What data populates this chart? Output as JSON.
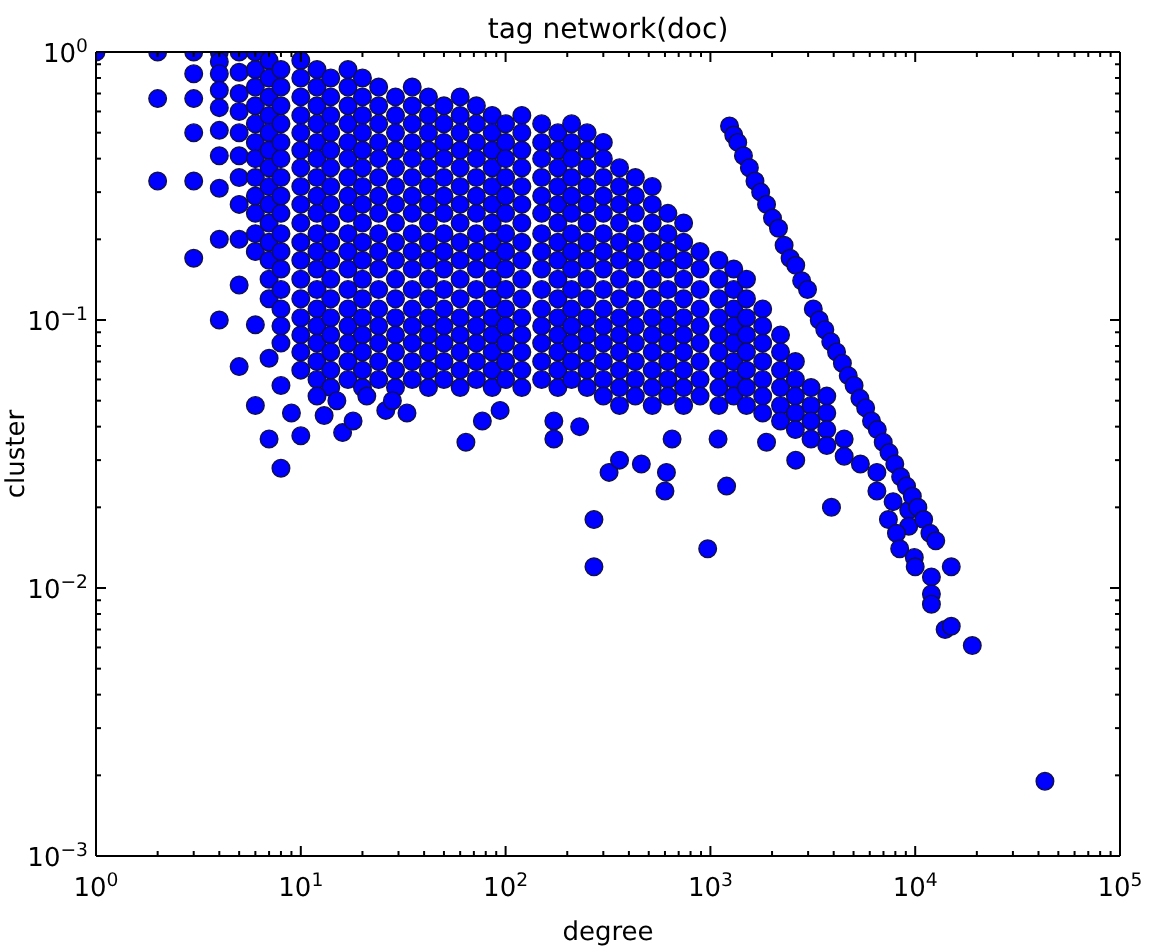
{
  "chart_data": {
    "type": "scatter",
    "title": "tag network(doc)",
    "xlabel": "degree",
    "ylabel": "cluster",
    "color": "#0000ff",
    "marker": "circle",
    "log": "xy",
    "xlim": [
      1,
      100000
    ],
    "ylim": [
      0.001,
      1
    ],
    "xticks": [
      {
        "value": 1,
        "label": "10$^{0}$"
      },
      {
        "value": 2,
        "label": null
      },
      {
        "value": 3,
        "label": null
      },
      {
        "value": 4,
        "label": null
      },
      {
        "value": 5,
        "label": null
      },
      {
        "value": 6,
        "label": null
      },
      {
        "value": 7,
        "label": null
      },
      {
        "value": 8,
        "label": null
      },
      {
        "value": 9,
        "label": null
      },
      {
        "value": 10,
        "label": "10$^{1}$"
      },
      {
        "value": 20,
        "label": null
      },
      {
        "value": 30,
        "label": null
      },
      {
        "value": 40,
        "label": null
      },
      {
        "value": 50,
        "label": null
      },
      {
        "value": 60,
        "label": null
      },
      {
        "value": 70,
        "label": null
      },
      {
        "value": 80,
        "label": null
      },
      {
        "value": 90,
        "label": null
      },
      {
        "value": 100,
        "label": "10$^{2}$"
      },
      {
        "value": 200,
        "label": null
      },
      {
        "value": 300,
        "label": null
      },
      {
        "value": 400,
        "label": null
      },
      {
        "value": 500,
        "label": null
      },
      {
        "value": 600,
        "label": null
      },
      {
        "value": 700,
        "label": null
      },
      {
        "value": 800,
        "label": null
      },
      {
        "value": 900,
        "label": null
      },
      {
        "value": 1000,
        "label": "10$^{3}$"
      },
      {
        "value": 2000,
        "label": null
      },
      {
        "value": 3000,
        "label": null
      },
      {
        "value": 4000,
        "label": null
      },
      {
        "value": 5000,
        "label": null
      },
      {
        "value": 6000,
        "label": null
      },
      {
        "value": 7000,
        "label": null
      },
      {
        "value": 8000,
        "label": null
      },
      {
        "value": 9000,
        "label": null
      },
      {
        "value": 10000,
        "label": "10$^{4}$"
      },
      {
        "value": 20000,
        "label": null
      },
      {
        "value": 30000,
        "label": null
      },
      {
        "value": 40000,
        "label": null
      },
      {
        "value": 50000,
        "label": null
      },
      {
        "value": 60000,
        "label": null
      },
      {
        "value": 70000,
        "label": null
      },
      {
        "value": 80000,
        "label": null
      },
      {
        "value": 90000,
        "label": null
      },
      {
        "value": 100000,
        "label": "10$^{5}$"
      }
    ],
    "yticks": [
      {
        "value": 0.001,
        "label": "10$^{−3}$"
      },
      {
        "value": 0.002,
        "label": null
      },
      {
        "value": 0.003,
        "label": null
      },
      {
        "value": 0.004,
        "label": null
      },
      {
        "value": 0.005,
        "label": null
      },
      {
        "value": 0.006,
        "label": null
      },
      {
        "value": 0.007,
        "label": null
      },
      {
        "value": 0.008,
        "label": null
      },
      {
        "value": 0.009,
        "label": null
      },
      {
        "value": 0.01,
        "label": "10$^{−2}$"
      },
      {
        "value": 0.02,
        "label": null
      },
      {
        "value": 0.03,
        "label": null
      },
      {
        "value": 0.04,
        "label": null
      },
      {
        "value": 0.05,
        "label": null
      },
      {
        "value": 0.06,
        "label": null
      },
      {
        "value": 0.07,
        "label": null
      },
      {
        "value": 0.08,
        "label": null
      },
      {
        "value": 0.09,
        "label": null
      },
      {
        "value": 0.1,
        "label": "10$^{−1}$"
      },
      {
        "value": 0.2,
        "label": null
      },
      {
        "value": 0.3,
        "label": null
      },
      {
        "value": 0.4,
        "label": null
      },
      {
        "value": 0.5,
        "label": null
      },
      {
        "value": 0.6,
        "label": null
      },
      {
        "value": 0.7,
        "label": null
      },
      {
        "value": 0.8,
        "label": null
      },
      {
        "value": 0.9,
        "label": null
      },
      {
        "value": 1,
        "label": "10$^{0}$"
      }
    ],
    "x": [
      1,
      2,
      2,
      2,
      3,
      3,
      3,
      3,
      3,
      3,
      4,
      4,
      4,
      4,
      4,
      4,
      4,
      4,
      4,
      4,
      5,
      5,
      5,
      5,
      5,
      5,
      5,
      5,
      5,
      5,
      5,
      6,
      6,
      6,
      6,
      6,
      6,
      6,
      6,
      6,
      6,
      6,
      6,
      7,
      7,
      7,
      7,
      7,
      7,
      7,
      7,
      7,
      7,
      7,
      7,
      7,
      7,
      8,
      8,
      8,
      8,
      8,
      8,
      8,
      8,
      8,
      8,
      8,
      8,
      8,
      8,
      8,
      8,
      10,
      10,
      10,
      10,
      10,
      10,
      10,
      10,
      10,
      10,
      10,
      10,
      10,
      10,
      10,
      10,
      10,
      10,
      12,
      12,
      12,
      12,
      12,
      12,
      12,
      12,
      12,
      12,
      12,
      12,
      12,
      12,
      12,
      12,
      12,
      12,
      14,
      14,
      14,
      14,
      14,
      14,
      14,
      14,
      14,
      14,
      14,
      14,
      14,
      14,
      14,
      14,
      14,
      14,
      17,
      17,
      17,
      17,
      17,
      17,
      17,
      17,
      17,
      17,
      17,
      17,
      17,
      17,
      17,
      17,
      17,
      17,
      20,
      20,
      20,
      20,
      20,
      20,
      20,
      20,
      20,
      20,
      20,
      20,
      20,
      20,
      20,
      20,
      20,
      20,
      24,
      24,
      24,
      24,
      24,
      24,
      24,
      24,
      24,
      24,
      24,
      24,
      24,
      24,
      24,
      24,
      24,
      29,
      29,
      29,
      29,
      29,
      29,
      29,
      29,
      29,
      29,
      29,
      29,
      29,
      29,
      29,
      29,
      29,
      35,
      35,
      35,
      35,
      35,
      35,
      35,
      35,
      35,
      35,
      35,
      35,
      35,
      35,
      35,
      35,
      35,
      42,
      42,
      42,
      42,
      42,
      42,
      42,
      42,
      42,
      42,
      42,
      42,
      42,
      42,
      42,
      42,
      42,
      50,
      50,
      50,
      50,
      50,
      50,
      50,
      50,
      50,
      50,
      50,
      50,
      50,
      50,
      50,
      50,
      60,
      60,
      60,
      60,
      60,
      60,
      60,
      60,
      60,
      60,
      60,
      60,
      60,
      60,
      60,
      60,
      60,
      72,
      72,
      72,
      72,
      72,
      72,
      72,
      72,
      72,
      72,
      72,
      72,
      72,
      72,
      72,
      72,
      86,
      86,
      86,
      86,
      86,
      86,
      86,
      86,
      86,
      86,
      86,
      86,
      86,
      86,
      86,
      86,
      100,
      100,
      100,
      100,
      100,
      100,
      100,
      100,
      100,
      100,
      100,
      100,
      100,
      100,
      100,
      120,
      120,
      120,
      120,
      120,
      120,
      120,
      120,
      120,
      120,
      120,
      120,
      120,
      120,
      120,
      120,
      150,
      150,
      150,
      150,
      150,
      150,
      150,
      150,
      150,
      150,
      150,
      150,
      150,
      150,
      150,
      180,
      180,
      180,
      180,
      180,
      180,
      180,
      180,
      180,
      180,
      180,
      180,
      180,
      180,
      180,
      210,
      210,
      210,
      210,
      210,
      210,
      210,
      210,
      210,
      210,
      210,
      210,
      210,
      210,
      210,
      250,
      250,
      250,
      250,
      250,
      250,
      250,
      250,
      250,
      250,
      250,
      250,
      250,
      250,
      250,
      300,
      300,
      300,
      300,
      300,
      300,
      300,
      300,
      300,
      300,
      300,
      300,
      300,
      300,
      300,
      360,
      360,
      360,
      360,
      360,
      360,
      360,
      360,
      360,
      360,
      360,
      360,
      360,
      360,
      430,
      430,
      430,
      430,
      430,
      430,
      430,
      430,
      430,
      430,
      430,
      430,
      430,
      520,
      520,
      520,
      520,
      520,
      520,
      520,
      520,
      520,
      520,
      520,
      520,
      520,
      620,
      620,
      620,
      620,
      620,
      620,
      620,
      620,
      620,
      620,
      620,
      740,
      740,
      740,
      740,
      740,
      740,
      740,
      740,
      740,
      740,
      740,
      890,
      890,
      890,
      890,
      890,
      890,
      890,
      890,
      890,
      1100,
      1100,
      1100,
      1100,
      1100,
      1100,
      1100,
      1100,
      1100,
      1300,
      1300,
      1300,
      1300,
      1300,
      1300,
      1300,
      1300,
      1500,
      1500,
      1500,
      1500,
      1500,
      1500,
      1500,
      1500,
      1800,
      1800,
      1800,
      1800,
      1800,
      1800,
      1800,
      2200,
      2200,
      2200,
      2200,
      2200,
      2200,
      2600,
      2600,
      2600,
      2600,
      2600,
      3100,
      3100,
      3100,
      3100,
      3700,
      3700,
      3700,
      3700,
      4500,
      4500,
      5400,
      6500,
      6500,
      7800,
      9300,
      9300,
      6,
      6,
      7,
      7,
      8,
      8,
      9,
      10,
      12,
      13,
      15,
      16,
      18,
      21,
      26,
      28,
      33,
      64,
      77,
      94,
      172,
      172,
      230,
      270,
      270,
      320,
      360,
      460,
      600,
      610,
      650,
      970,
      1090,
      1200,
      1880,
      2610,
      3900,
      1240,
      1300,
      1360,
      1450,
      1550,
      1650,
      1760,
      1880,
      2010,
      2150,
      2290,
      2450,
      2610,
      2790,
      2980,
      3180,
      3400,
      3620,
      3870,
      4130,
      4410,
      4710,
      5030,
      5370,
      5730,
      6120,
      6530,
      6980,
      7450,
      7950,
      8490,
      9070,
      9680,
      10300,
      11000,
      11800,
      12600,
      7400,
      8100,
      8400,
      9900,
      10000,
      12000,
      15000,
      12000,
      12000,
      14000,
      15000,
      19000,
      43000
    ],
    "values": [
      1,
      1,
      0.67,
      0.33,
      1,
      0.83,
      0.67,
      0.5,
      0.33,
      0.17,
      1,
      0.92,
      0.83,
      0.72,
      0.62,
      0.51,
      0.41,
      0.31,
      0.2,
      0.1,
      1,
      0.84,
      0.7,
      0.6,
      0.5,
      0.41,
      0.34,
      0.27,
      0.2,
      0.135,
      0.067,
      1,
      0.86,
      0.74,
      0.63,
      0.54,
      0.46,
      0.4,
      0.34,
      0.29,
      0.25,
      0.21,
      0.18,
      0.93,
      0.8,
      0.68,
      0.58,
      0.5,
      0.43,
      0.37,
      0.315,
      0.27,
      0.23,
      0.195,
      0.167,
      0.142,
      0.12,
      0.86,
      0.74,
      0.63,
      0.54,
      0.46,
      0.4,
      0.34,
      0.29,
      0.25,
      0.21,
      0.18,
      0.155,
      0.13,
      0.11,
      0.095,
      0.082,
      0.93,
      0.8,
      0.68,
      0.58,
      0.5,
      0.43,
      0.37,
      0.315,
      0.27,
      0.23,
      0.195,
      0.167,
      0.142,
      0.12,
      0.102,
      0.088,
      0.076,
      0.065,
      0.86,
      0.74,
      0.63,
      0.54,
      0.46,
      0.4,
      0.34,
      0.29,
      0.25,
      0.21,
      0.18,
      0.155,
      0.13,
      0.11,
      0.095,
      0.082,
      0.07,
      0.06,
      0.8,
      0.68,
      0.58,
      0.5,
      0.43,
      0.37,
      0.315,
      0.27,
      0.23,
      0.195,
      0.167,
      0.142,
      0.12,
      0.102,
      0.088,
      0.076,
      0.065,
      0.056,
      0.86,
      0.74,
      0.63,
      0.54,
      0.46,
      0.4,
      0.34,
      0.29,
      0.25,
      0.21,
      0.18,
      0.155,
      0.13,
      0.11,
      0.095,
      0.082,
      0.07,
      0.06,
      0.8,
      0.68,
      0.58,
      0.5,
      0.43,
      0.37,
      0.315,
      0.27,
      0.23,
      0.195,
      0.167,
      0.142,
      0.12,
      0.102,
      0.088,
      0.076,
      0.065,
      0.056,
      0.74,
      0.63,
      0.54,
      0.46,
      0.4,
      0.34,
      0.29,
      0.25,
      0.21,
      0.18,
      0.155,
      0.13,
      0.11,
      0.095,
      0.082,
      0.07,
      0.06,
      0.68,
      0.58,
      0.5,
      0.43,
      0.37,
      0.315,
      0.27,
      0.23,
      0.195,
      0.167,
      0.142,
      0.12,
      0.102,
      0.088,
      0.076,
      0.065,
      0.056,
      0.74,
      0.63,
      0.54,
      0.46,
      0.4,
      0.34,
      0.29,
      0.25,
      0.21,
      0.18,
      0.155,
      0.13,
      0.11,
      0.095,
      0.082,
      0.07,
      0.06,
      0.68,
      0.58,
      0.5,
      0.43,
      0.37,
      0.315,
      0.27,
      0.23,
      0.195,
      0.167,
      0.142,
      0.12,
      0.102,
      0.088,
      0.076,
      0.065,
      0.056,
      0.63,
      0.54,
      0.46,
      0.4,
      0.34,
      0.29,
      0.25,
      0.21,
      0.18,
      0.155,
      0.13,
      0.11,
      0.095,
      0.082,
      0.07,
      0.06,
      0.68,
      0.58,
      0.5,
      0.43,
      0.37,
      0.315,
      0.27,
      0.23,
      0.195,
      0.167,
      0.142,
      0.12,
      0.102,
      0.088,
      0.076,
      0.065,
      0.056,
      0.63,
      0.54,
      0.46,
      0.4,
      0.34,
      0.29,
      0.25,
      0.21,
      0.18,
      0.155,
      0.13,
      0.11,
      0.095,
      0.082,
      0.07,
      0.06,
      0.58,
      0.5,
      0.43,
      0.37,
      0.315,
      0.27,
      0.23,
      0.195,
      0.167,
      0.142,
      0.12,
      0.102,
      0.088,
      0.076,
      0.065,
      0.056,
      0.54,
      0.46,
      0.4,
      0.34,
      0.29,
      0.25,
      0.21,
      0.18,
      0.155,
      0.13,
      0.11,
      0.095,
      0.082,
      0.07,
      0.06,
      0.58,
      0.5,
      0.43,
      0.37,
      0.315,
      0.27,
      0.23,
      0.195,
      0.167,
      0.142,
      0.12,
      0.102,
      0.088,
      0.076,
      0.065,
      0.056,
      0.54,
      0.46,
      0.4,
      0.34,
      0.29,
      0.25,
      0.21,
      0.18,
      0.155,
      0.13,
      0.11,
      0.095,
      0.082,
      0.07,
      0.06,
      0.5,
      0.43,
      0.37,
      0.315,
      0.27,
      0.23,
      0.195,
      0.167,
      0.142,
      0.12,
      0.102,
      0.088,
      0.076,
      0.065,
      0.056,
      0.54,
      0.46,
      0.4,
      0.34,
      0.29,
      0.25,
      0.21,
      0.18,
      0.155,
      0.13,
      0.11,
      0.095,
      0.082,
      0.07,
      0.06,
      0.5,
      0.43,
      0.37,
      0.315,
      0.27,
      0.23,
      0.195,
      0.167,
      0.142,
      0.12,
      0.102,
      0.088,
      0.076,
      0.065,
      0.056,
      0.46,
      0.4,
      0.34,
      0.29,
      0.25,
      0.21,
      0.18,
      0.155,
      0.13,
      0.11,
      0.095,
      0.082,
      0.07,
      0.06,
      0.052,
      0.37,
      0.315,
      0.27,
      0.23,
      0.195,
      0.167,
      0.142,
      0.12,
      0.102,
      0.088,
      0.076,
      0.065,
      0.056,
      0.048,
      0.34,
      0.29,
      0.25,
      0.21,
      0.18,
      0.155,
      0.13,
      0.11,
      0.095,
      0.082,
      0.07,
      0.06,
      0.052,
      0.315,
      0.27,
      0.23,
      0.195,
      0.167,
      0.142,
      0.12,
      0.102,
      0.088,
      0.076,
      0.065,
      0.056,
      0.048,
      0.25,
      0.21,
      0.18,
      0.155,
      0.13,
      0.11,
      0.095,
      0.082,
      0.07,
      0.06,
      0.052,
      0.23,
      0.195,
      0.167,
      0.142,
      0.12,
      0.102,
      0.088,
      0.076,
      0.065,
      0.056,
      0.048,
      0.18,
      0.155,
      0.13,
      0.11,
      0.095,
      0.082,
      0.07,
      0.06,
      0.052,
      0.167,
      0.142,
      0.12,
      0.102,
      0.088,
      0.076,
      0.065,
      0.056,
      0.048,
      0.155,
      0.13,
      0.11,
      0.095,
      0.082,
      0.07,
      0.06,
      0.052,
      0.142,
      0.12,
      0.102,
      0.088,
      0.076,
      0.065,
      0.056,
      0.048,
      0.11,
      0.095,
      0.082,
      0.07,
      0.06,
      0.052,
      0.045,
      0.088,
      0.076,
      0.065,
      0.056,
      0.048,
      0.042,
      0.07,
      0.06,
      0.052,
      0.045,
      0.039,
      0.056,
      0.048,
      0.042,
      0.036,
      0.052,
      0.045,
      0.039,
      0.034,
      0.036,
      0.031,
      0.029,
      0.027,
      0.023,
      0.021,
      0.0195,
      0.017,
      0.096,
      0.048,
      0.072,
      0.036,
      0.057,
      0.028,
      0.045,
      0.037,
      0.052,
      0.044,
      0.05,
      0.038,
      0.042,
      0.052,
      0.046,
      0.05,
      0.045,
      0.035,
      0.042,
      0.046,
      0.042,
      0.036,
      0.04,
      0.018,
      0.012,
      0.027,
      0.03,
      0.029,
      0.023,
      0.027,
      0.036,
      0.014,
      0.036,
      0.024,
      0.035,
      0.03,
      0.02,
      0.53,
      0.49,
      0.46,
      0.41,
      0.37,
      0.33,
      0.3,
      0.27,
      0.24,
      0.22,
      0.19,
      0.17,
      0.16,
      0.14,
      0.13,
      0.11,
      0.1,
      0.092,
      0.083,
      0.076,
      0.069,
      0.062,
      0.057,
      0.051,
      0.047,
      0.042,
      0.039,
      0.035,
      0.032,
      0.029,
      0.026,
      0.024,
      0.022,
      0.02,
      0.018,
      0.016,
      0.015,
      0.018,
      0.016,
      0.014,
      0.013,
      0.012,
      0.011,
      0.012,
      0.0095,
      0.0087,
      0.007,
      0.0072,
      0.0061,
      0.0019
    ]
  }
}
